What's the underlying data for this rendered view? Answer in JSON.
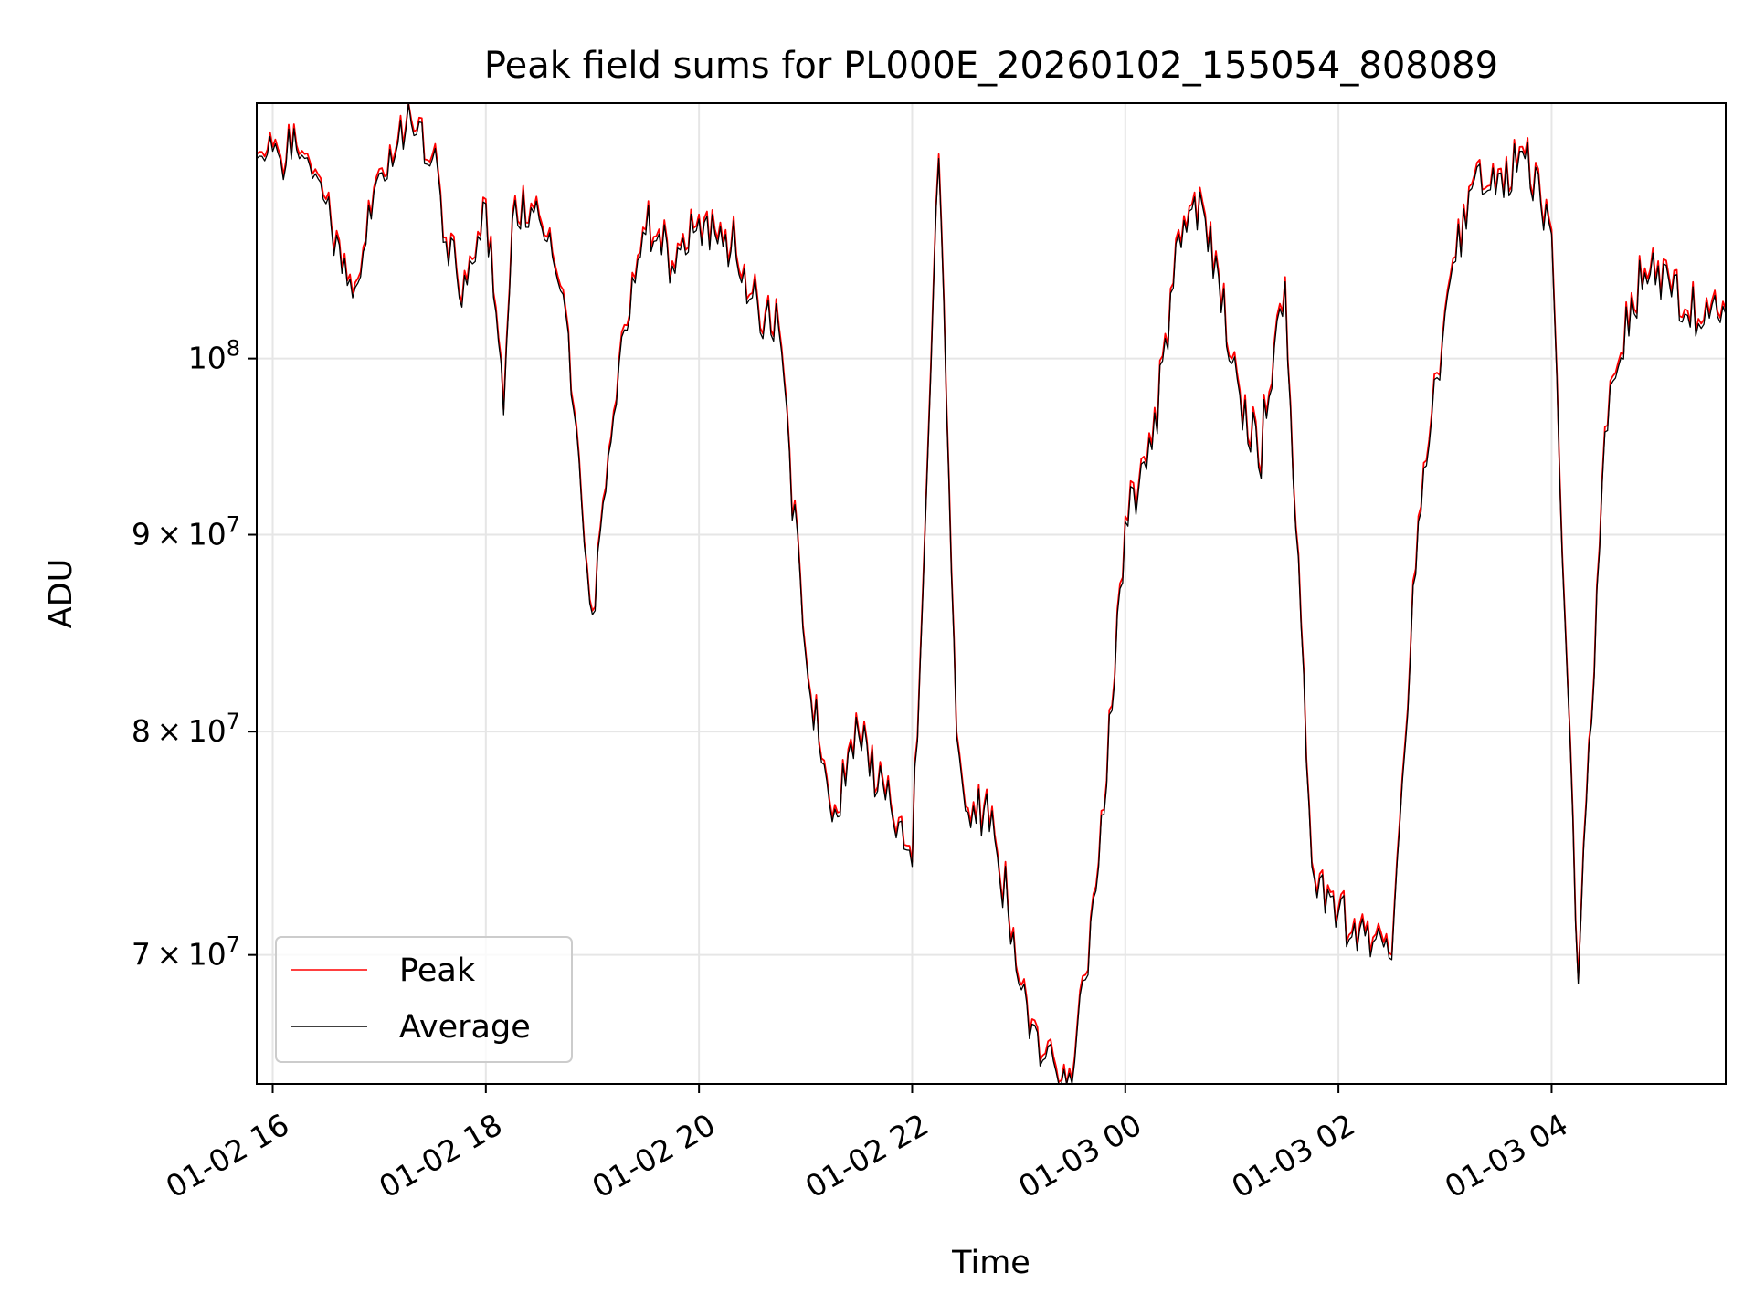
{
  "chart_data": {
    "type": "line",
    "title": "Peak field sums for PL000E_20260102_155054_808089",
    "xlabel": "Time",
    "ylabel": "ADU",
    "y_scale": "log",
    "xlim": [
      "01-02 15:51",
      "01-03 05:38"
    ],
    "ylim": [
      64800000,
      116500000
    ],
    "grid": true,
    "legend_position": "lower-left",
    "x_ticks": [
      {
        "value": "01-02 16:00",
        "label": "01-02 16"
      },
      {
        "value": "01-02 18:00",
        "label": "01-02 18"
      },
      {
        "value": "01-02 20:00",
        "label": "01-02 20"
      },
      {
        "value": "01-02 22:00",
        "label": "01-02 22"
      },
      {
        "value": "01-03 00:00",
        "label": "01-03 00"
      },
      {
        "value": "01-03 02:00",
        "label": "01-03 02"
      },
      {
        "value": "01-03 04:00",
        "label": "01-03 04"
      }
    ],
    "y_ticks": [
      {
        "value": 70000000,
        "mantissa": "7",
        "base": "10",
        "exponent": "7"
      },
      {
        "value": 80000000,
        "mantissa": "8",
        "base": "10",
        "exponent": "7"
      },
      {
        "value": 90000000,
        "mantissa": "9",
        "base": "10",
        "exponent": "7"
      },
      {
        "value": 100000000,
        "mantissa": "",
        "base": "10",
        "exponent": "8"
      }
    ],
    "x": [
      "01-02 15:51",
      "01-02 16:00",
      "01-02 16:15",
      "01-02 16:30",
      "01-02 16:45",
      "01-02 17:00",
      "01-02 17:15",
      "01-02 17:30",
      "01-02 17:45",
      "01-02 18:00",
      "01-02 18:10",
      "01-02 18:15",
      "01-02 18:30",
      "01-02 18:45",
      "01-02 19:00",
      "01-02 19:15",
      "01-02 19:30",
      "01-02 19:45",
      "01-02 20:00",
      "01-02 20:15",
      "01-02 20:30",
      "01-02 20:45",
      "01-02 21:00",
      "01-02 21:15",
      "01-02 21:30",
      "01-02 21:45",
      "01-02 22:00",
      "01-02 22:15",
      "01-02 22:25",
      "01-02 22:30",
      "01-02 22:45",
      "01-02 23:00",
      "01-02 23:15",
      "01-02 23:30",
      "01-02 23:45",
      "01-03 00:00",
      "01-03 00:15",
      "01-03 00:30",
      "01-03 00:45",
      "01-03 01:00",
      "01-03 01:15",
      "01-03 01:30",
      "01-03 01:45",
      "01-03 02:00",
      "01-03 02:15",
      "01-03 02:30",
      "01-03 02:45",
      "01-03 03:00",
      "01-03 03:15",
      "01-03 03:30",
      "01-03 03:45",
      "01-03 04:00",
      "01-03 04:15",
      "01-03 04:30",
      "01-03 04:45",
      "01-03 05:00",
      "01-03 05:15",
      "01-03 05:38"
    ],
    "series": [
      {
        "name": "Peak",
        "color": "#ff0000",
        "values": [
          113000000,
          113500000,
          113000000,
          110000000,
          104000000,
          112000000,
          115000000,
          113000000,
          104000000,
          110000000,
          97000000,
          109000000,
          109000000,
          103000000,
          86000000,
          100000000,
          108000000,
          106000000,
          109000000,
          108000000,
          104000000,
          102000000,
          84000000,
          76000000,
          80000000,
          77000000,
          74000000,
          113000000,
          80000000,
          76500000,
          76500000,
          69000000,
          66000000,
          65000000,
          74000000,
          91000000,
          95000000,
          108000000,
          109000000,
          100000000,
          94000000,
          105000000,
          74000000,
          72000000,
          71000000,
          70000000,
          91000000,
          103000000,
          111000000,
          112000000,
          113000000,
          108000000,
          69000000,
          96000000,
          104000000,
          106000000,
          103000000,
          103000000
        ]
      },
      {
        "name": "Average",
        "color": "#000000",
        "values": [
          112700000,
          113200000,
          112700000,
          109700000,
          103700000,
          111700000,
          114700000,
          112700000,
          103700000,
          109700000,
          96700000,
          108700000,
          108700000,
          102700000,
          85800000,
          99700000,
          107700000,
          105700000,
          108700000,
          107700000,
          103700000,
          101700000,
          83800000,
          75800000,
          79800000,
          76800000,
          73800000,
          112700000,
          79800000,
          76300000,
          76300000,
          68800000,
          65800000,
          64800000,
          73800000,
          90700000,
          94700000,
          107700000,
          108700000,
          99700000,
          93700000,
          104700000,
          73800000,
          71800000,
          70800000,
          69800000,
          90700000,
          102700000,
          110700000,
          111700000,
          112700000,
          107700000,
          68800000,
          95700000,
          103700000,
          105700000,
          102700000,
          102700000
        ]
      }
    ]
  }
}
